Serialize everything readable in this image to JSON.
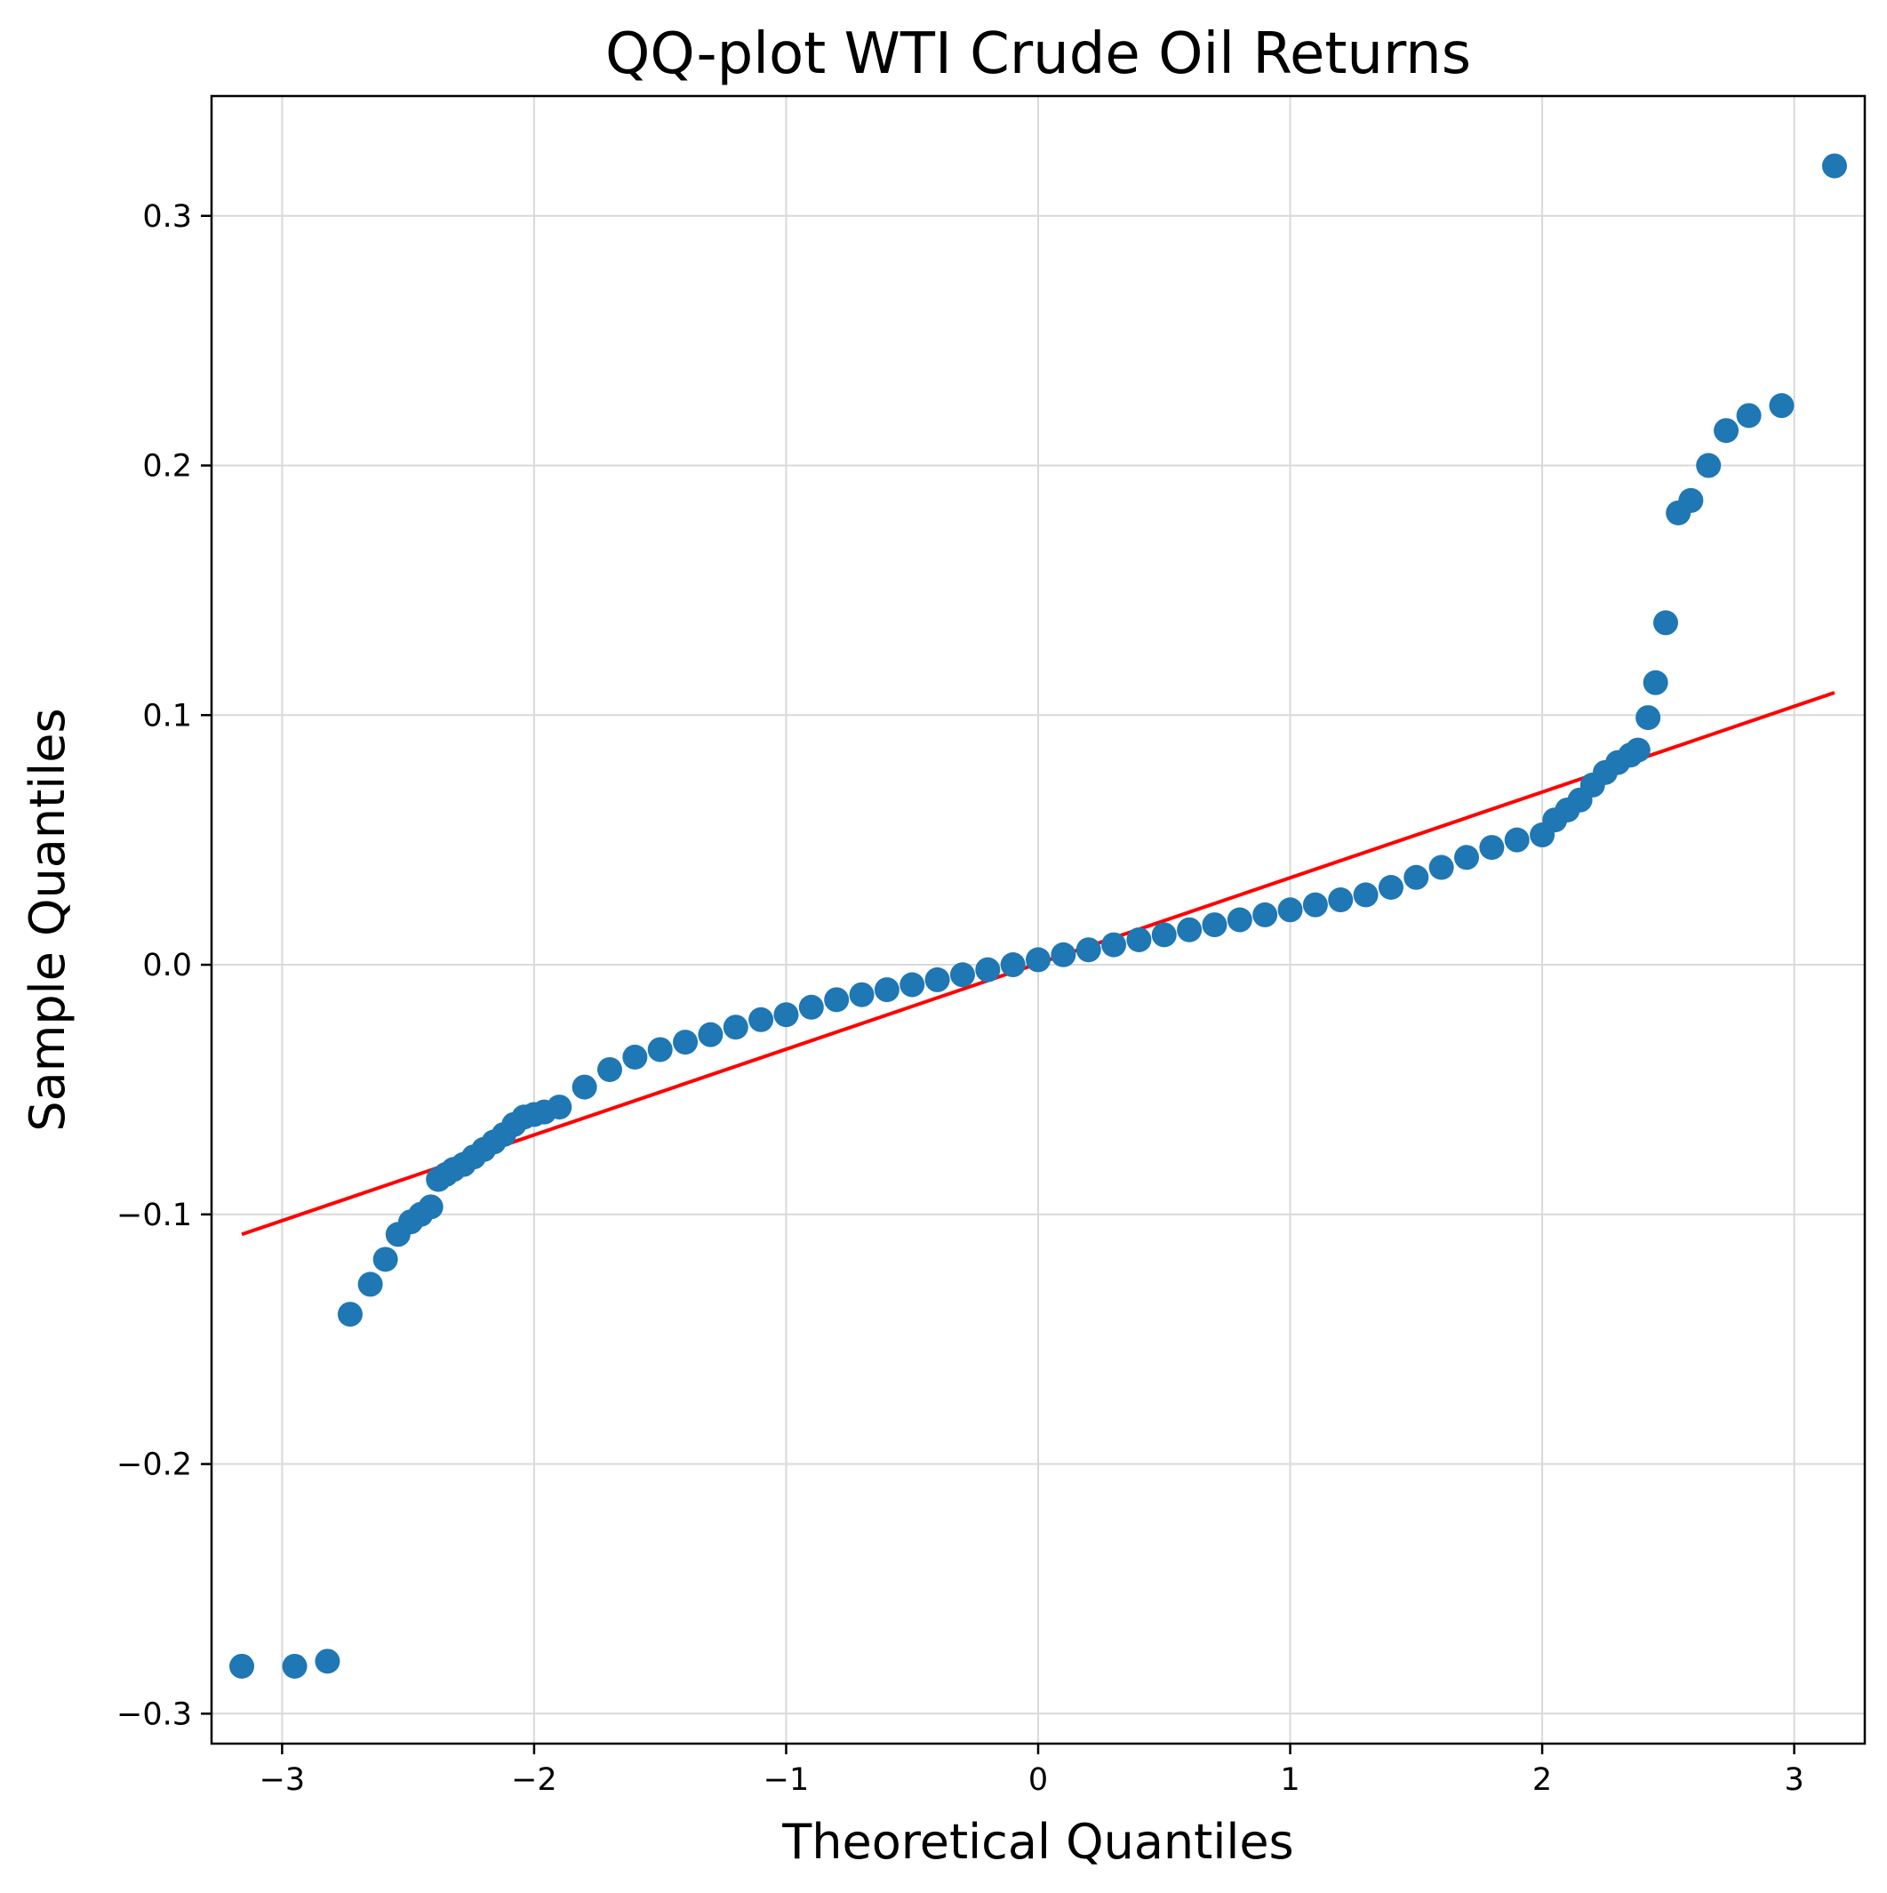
{
  "chart_data": {
    "type": "scatter",
    "title": "QQ-plot WTI Crude Oil Returns",
    "xlabel": "Theoretical Quantiles",
    "ylabel": "Sample Quantiles",
    "xlim": [
      -3.28,
      3.28
    ],
    "ylim": [
      -0.312,
      0.348
    ],
    "grid": true,
    "xticks": [
      -3,
      -2,
      -1,
      0,
      1,
      2,
      3
    ],
    "xtick_labels": [
      "−3",
      "−2",
      "−1",
      "0",
      "1",
      "2",
      "3"
    ],
    "yticks": [
      -0.3,
      -0.2,
      -0.1,
      0.0,
      0.1,
      0.2,
      0.3
    ],
    "ytick_labels": [
      "−0.3",
      "−0.2",
      "−0.1",
      "0.0",
      "0.1",
      "0.2",
      "0.3"
    ],
    "colors": {
      "points": "#1f77b4",
      "line": "#ff0000",
      "grid": "#d9d9d9"
    },
    "reference_line": {
      "x": [
        -3.16,
        3.16
      ],
      "y": [
        -0.108,
        0.109
      ]
    },
    "points": {
      "x": [
        -3.16,
        -2.95,
        -2.82,
        -2.73,
        -2.65,
        -2.59,
        -2.54,
        -2.49,
        -2.45,
        -2.41,
        -2.38,
        -2.35,
        -2.32,
        -2.28,
        -2.24,
        -2.2,
        -2.16,
        -2.12,
        -2.08,
        -2.04,
        -2.0,
        -1.96,
        -1.9,
        -1.8,
        -1.7,
        -1.6,
        -1.5,
        -1.4,
        -1.3,
        -1.2,
        -1.1,
        -1.0,
        -0.9,
        -0.8,
        -0.7,
        -0.6,
        -0.5,
        -0.4,
        -0.3,
        -0.2,
        -0.1,
        0.0,
        0.1,
        0.2,
        0.3,
        0.4,
        0.5,
        0.6,
        0.7,
        0.8,
        0.9,
        1.0,
        1.1,
        1.2,
        1.3,
        1.4,
        1.5,
        1.6,
        1.7,
        1.8,
        1.9,
        2.0,
        2.05,
        2.1,
        2.15,
        2.2,
        2.25,
        2.3,
        2.35,
        2.38,
        2.42,
        2.45,
        2.49,
        2.54,
        2.59,
        2.66,
        2.73,
        2.82,
        2.95,
        3.16
      ],
      "y": [
        -0.281,
        -0.281,
        -0.279,
        -0.14,
        -0.128,
        -0.118,
        -0.108,
        -0.103,
        -0.1,
        -0.097,
        -0.086,
        -0.084,
        -0.082,
        -0.08,
        -0.077,
        -0.074,
        -0.071,
        -0.068,
        -0.064,
        -0.061,
        -0.06,
        -0.059,
        -0.057,
        -0.049,
        -0.042,
        -0.037,
        -0.034,
        -0.031,
        -0.028,
        -0.025,
        -0.022,
        -0.02,
        -0.017,
        -0.014,
        -0.012,
        -0.01,
        -0.008,
        -0.006,
        -0.004,
        -0.002,
        0.0,
        0.002,
        0.004,
        0.006,
        0.008,
        0.01,
        0.012,
        0.014,
        0.016,
        0.018,
        0.02,
        0.022,
        0.024,
        0.026,
        0.028,
        0.031,
        0.035,
        0.039,
        0.043,
        0.047,
        0.05,
        0.052,
        0.058,
        0.062,
        0.066,
        0.072,
        0.077,
        0.081,
        0.084,
        0.086,
        0.099,
        0.113,
        0.137,
        0.181,
        0.186,
        0.2,
        0.214,
        0.22,
        0.224,
        0.32
      ]
    }
  }
}
